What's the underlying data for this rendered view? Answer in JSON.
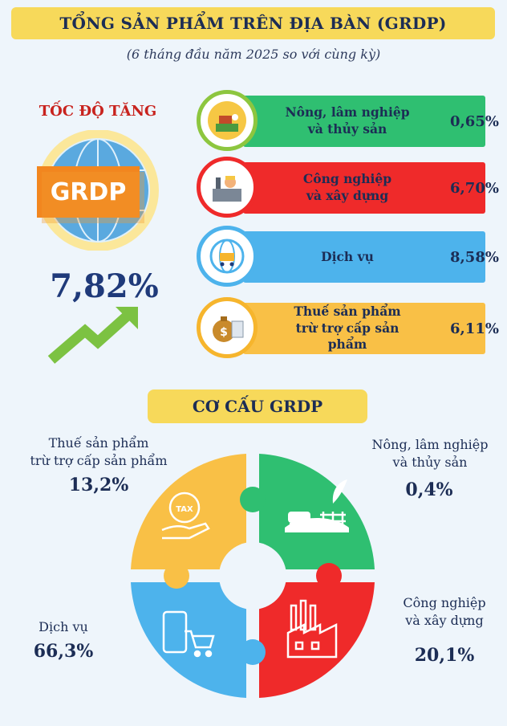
{
  "title": "TỔNG SẢN PHẨM TRÊN ĐỊA BÀN (GRDP)",
  "subtitle": "(6 tháng đầu năm 2025 so với cùng kỳ)",
  "growth": {
    "heading": "TỐC ĐỘ TĂNG",
    "badge": "GRDP",
    "value": "7,82%"
  },
  "sectors": [
    {
      "line1": "Nông, lâm nghiệp",
      "line2": "và thủy sản",
      "value": "0,65%",
      "color": "#2fbf71",
      "ring": "#8dc63f",
      "icon": "farm-icon"
    },
    {
      "line1": "Công nghiệp",
      "line2": "và xây dựng",
      "value": "6,70%",
      "color": "#ef2a2a",
      "ring": "#ef2a2a",
      "icon": "factory-worker-icon"
    },
    {
      "line1": "Dịch vụ",
      "line2": "",
      "value": "8,58%",
      "color": "#4db3ec",
      "ring": "#4db3ec",
      "icon": "globe-cart-icon"
    },
    {
      "line1": "Thuế sản phẩm",
      "line2": "trừ trợ cấp sản phẩm",
      "value": "6,11%",
      "color": "#f9c046",
      "ring": "#f6b52d",
      "icon": "money-bag-icon"
    }
  ],
  "structure": {
    "heading": "CƠ CẤU GRDP",
    "tax": {
      "line1": "Thuế sản phẩm",
      "line2": "trừ trợ cấp sản phẩm",
      "value": "13,2%",
      "color": "#f9c046",
      "icon": "tax-hand-icon"
    },
    "agri": {
      "line1": "Nông, lâm nghiệp",
      "line2": "và thủy sản",
      "value": "0,4%",
      "color": "#2fbf71",
      "icon": "farm-cow-icon"
    },
    "services": {
      "line1": "Dịch vụ",
      "value": "66,3%",
      "color": "#4db3ec",
      "icon": "phone-cart-icon"
    },
    "industry": {
      "line1": "Công nghiệp",
      "line2": "và xây dựng",
      "value": "20,1%",
      "color": "#ef2a2a",
      "icon": "factory-icon"
    }
  }
}
